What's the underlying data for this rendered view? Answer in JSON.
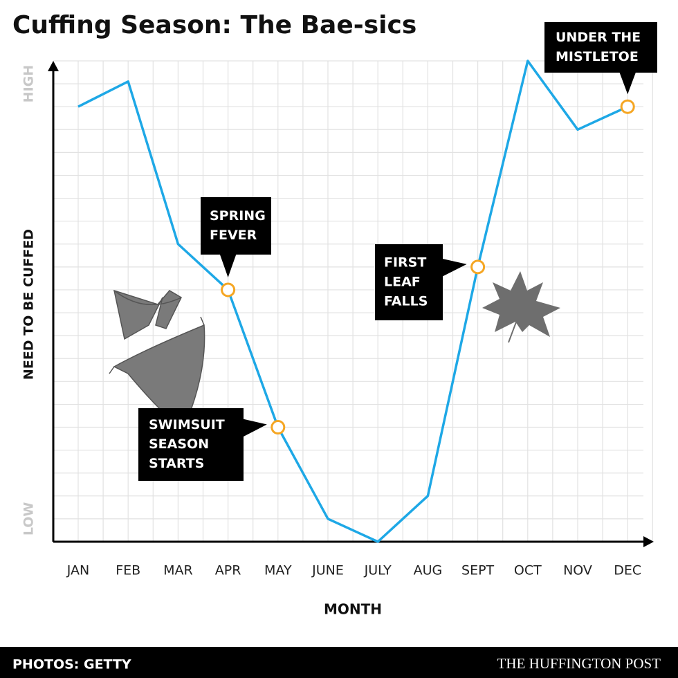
{
  "chart_data": {
    "type": "line",
    "title": "Cuffing Season: The Bae-sics",
    "x_label": "MONTH",
    "y_label": "NEED TO BE CUFFED",
    "categories": [
      "JAN",
      "FEB",
      "MAR",
      "APR",
      "MAY",
      "JUNE",
      "JULY",
      "AUG",
      "SEPT",
      "OCT",
      "NOV",
      "DEC"
    ],
    "series": [
      {
        "name": "Need to be cuffed",
        "color": "#1ea8e6",
        "values": [
          19,
          20.1,
          13,
          11,
          5,
          1,
          0,
          2,
          12,
          21,
          18,
          19
        ]
      }
    ],
    "ylim": [
      0,
      21
    ],
    "yticks": [
      {
        "value": 1,
        "label": "LOW"
      },
      {
        "value": 20,
        "label": "HIGH"
      }
    ],
    "grid": true,
    "marker_color": "#f5a623",
    "annotations": [
      {
        "category": "APR",
        "lines": [
          "SPRING",
          "FEVER"
        ]
      },
      {
        "category": "MAY",
        "lines": [
          "SWIMSUIT",
          "SEASON",
          "STARTS"
        ]
      },
      {
        "category": "SEPT",
        "lines": [
          "FIRST",
          "LEAF",
          "FALLS"
        ]
      },
      {
        "category": "DEC",
        "lines": [
          "UNDER THE",
          "MISTLETOE"
        ]
      }
    ],
    "footer_left": "PHOTOS: GETTY",
    "footer_right": "THE HUFFINGTON POST"
  }
}
